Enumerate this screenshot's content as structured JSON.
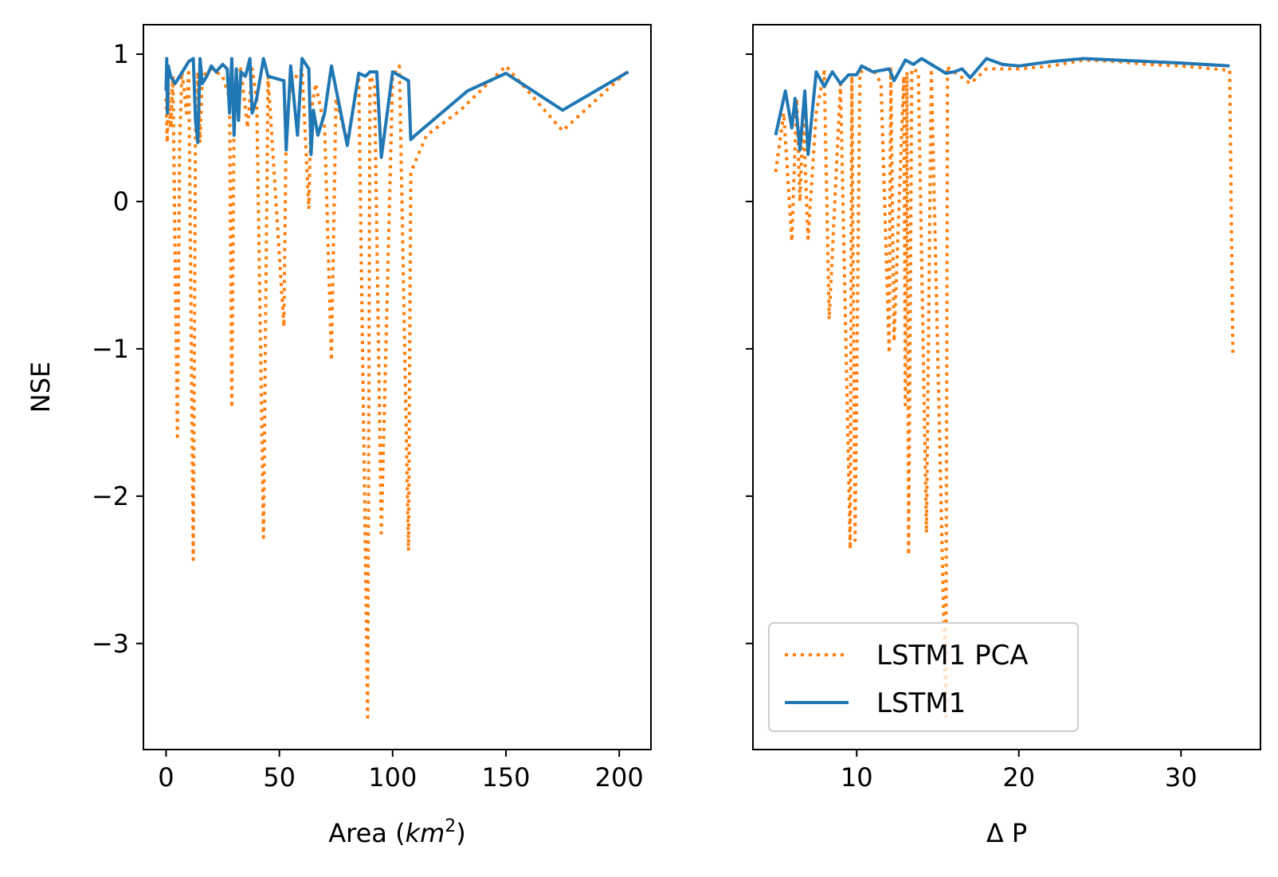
{
  "chart_data": [
    {
      "type": "line",
      "xlabel": "Area (km²)",
      "xlabel_parts": {
        "prefix": "Area (",
        "var": "km",
        "sup": "2",
        "suffix": ")"
      },
      "ylabel": "NSE",
      "xlim": [
        -10,
        214
      ],
      "ylim": [
        -3.72,
        1.2
      ],
      "xticks": [
        0,
        50,
        100,
        150,
        200
      ],
      "yticks": [
        1,
        0,
        -1,
        -2,
        -3
      ],
      "ytick_labels": [
        "1",
        "0",
        "−1",
        "−2",
        "−3"
      ],
      "grid": false,
      "series": [
        {
          "name": "LSTM1 PCA",
          "color": "#ff7f0e",
          "style": "dotted",
          "x": [
            0,
            0.5,
            1,
            2,
            3,
            5,
            6,
            7,
            8,
            9,
            10,
            12,
            13,
            14,
            15,
            16,
            20,
            25,
            28,
            29,
            30,
            31,
            33,
            36,
            38,
            40,
            43,
            45,
            52,
            53,
            55,
            60,
            63,
            64,
            66,
            70,
            73,
            75,
            80,
            85,
            89,
            90,
            92,
            95,
            100,
            103,
            107,
            108,
            115,
            130,
            150,
            175,
            204
          ],
          "y": [
            0.7,
            0.4,
            0.8,
            0.5,
            0.85,
            -1.62,
            0.4,
            0.88,
            0.75,
            0.6,
            0.9,
            -2.43,
            0.5,
            0.88,
            0.4,
            0.85,
            0.9,
            0.85,
            0.7,
            -1.4,
            0.6,
            0.85,
            0.9,
            0.5,
            0.9,
            0.7,
            -2.28,
            0.85,
            -0.85,
            0.5,
            0.8,
            0.9,
            -0.05,
            0.6,
            0.8,
            0.5,
            -1.08,
            0.7,
            0.4,
            0.85,
            -3.5,
            0.85,
            0.8,
            -2.25,
            0.85,
            0.92,
            -2.37,
            0.2,
            0.45,
            0.62,
            0.92,
            0.48,
            0.89
          ]
        },
        {
          "name": "LSTM1",
          "color": "#1f77b4",
          "style": "solid",
          "x": [
            0,
            0.3,
            0.6,
            1,
            2,
            4,
            6,
            8,
            10,
            12,
            13,
            14,
            15,
            16,
            18,
            20,
            22,
            25,
            27,
            28,
            29,
            30,
            31,
            32,
            33,
            35,
            37,
            38,
            40,
            43,
            45,
            52,
            53,
            55,
            58,
            60,
            63,
            64,
            65,
            67,
            70,
            73,
            80,
            85,
            88,
            90,
            93,
            95,
            100,
            107,
            108,
            110,
            133,
            150,
            175,
            204
          ],
          "y": [
            0.75,
            0.97,
            0.6,
            0.92,
            0.85,
            0.8,
            0.85,
            0.9,
            0.95,
            0.97,
            0.55,
            0.4,
            0.97,
            0.8,
            0.85,
            0.92,
            0.88,
            0.93,
            0.9,
            0.6,
            0.97,
            0.45,
            0.9,
            0.55,
            0.88,
            0.85,
            0.97,
            0.6,
            0.7,
            0.97,
            0.85,
            0.82,
            0.35,
            0.92,
            0.45,
            0.97,
            0.9,
            0.32,
            0.62,
            0.45,
            0.6,
            0.92,
            0.38,
            0.87,
            0.85,
            0.88,
            0.88,
            0.3,
            0.88,
            0.82,
            0.42,
            0.45,
            0.75,
            0.87,
            0.62,
            0.88
          ]
        }
      ]
    },
    {
      "type": "line",
      "xlabel": "Δ P",
      "xlim": [
        3.6,
        34.9
      ],
      "ylim": [
        -3.72,
        1.2
      ],
      "xticks": [
        10,
        20,
        30
      ],
      "legend": {
        "placement": "lower-left",
        "entries": [
          "LSTM1 PCA",
          "LSTM1"
        ]
      },
      "grid": false,
      "series": [
        {
          "name": "LSTM1 PCA",
          "color": "#ff7f0e",
          "style": "dotted",
          "x": [
            5,
            5.5,
            6,
            6.3,
            6.5,
            6.7,
            7,
            7.5,
            8,
            8.3,
            9,
            9.6,
            9.7,
            9.9,
            10.2,
            11,
            11.5,
            12,
            12.1,
            12.3,
            12.9,
            13,
            13.1,
            13.2,
            13.4,
            13.8,
            14.3,
            14.6,
            15.5,
            15.6,
            15.7,
            16,
            17,
            18,
            20,
            22,
            24,
            26,
            28,
            30,
            33,
            33.2
          ],
          "y": [
            0.2,
            0.6,
            -0.27,
            0.7,
            0.0,
            0.6,
            -0.25,
            0.6,
            0.88,
            -0.8,
            0.8,
            -2.36,
            0.85,
            -2.3,
            0.88,
            0.9,
            0.8,
            -1.03,
            0.9,
            -0.95,
            0.85,
            -1.38,
            0.88,
            -2.4,
            0.9,
            0.88,
            -2.25,
            0.9,
            -3.5,
            0.92,
            0.9,
            0.88,
            0.8,
            0.9,
            0.9,
            0.92,
            0.96,
            0.95,
            0.93,
            0.92,
            0.89,
            -1.03
          ]
        },
        {
          "name": "LSTM1",
          "color": "#1f77b4",
          "style": "solid",
          "x": [
            5,
            5.6,
            6,
            6.2,
            6.5,
            6.8,
            7,
            7.5,
            8,
            8.5,
            9,
            9.5,
            10,
            10.3,
            11,
            12,
            12.3,
            13,
            13.5,
            14,
            15.5,
            16,
            16.5,
            17,
            18,
            19,
            20,
            22,
            24,
            26,
            28,
            30,
            33
          ],
          "y": [
            0.45,
            0.75,
            0.5,
            0.7,
            0.35,
            0.75,
            0.32,
            0.88,
            0.78,
            0.88,
            0.8,
            0.86,
            0.86,
            0.92,
            0.88,
            0.9,
            0.82,
            0.96,
            0.93,
            0.97,
            0.87,
            0.88,
            0.9,
            0.84,
            0.97,
            0.93,
            0.92,
            0.95,
            0.97,
            0.96,
            0.95,
            0.94,
            0.92
          ]
        }
      ]
    }
  ]
}
